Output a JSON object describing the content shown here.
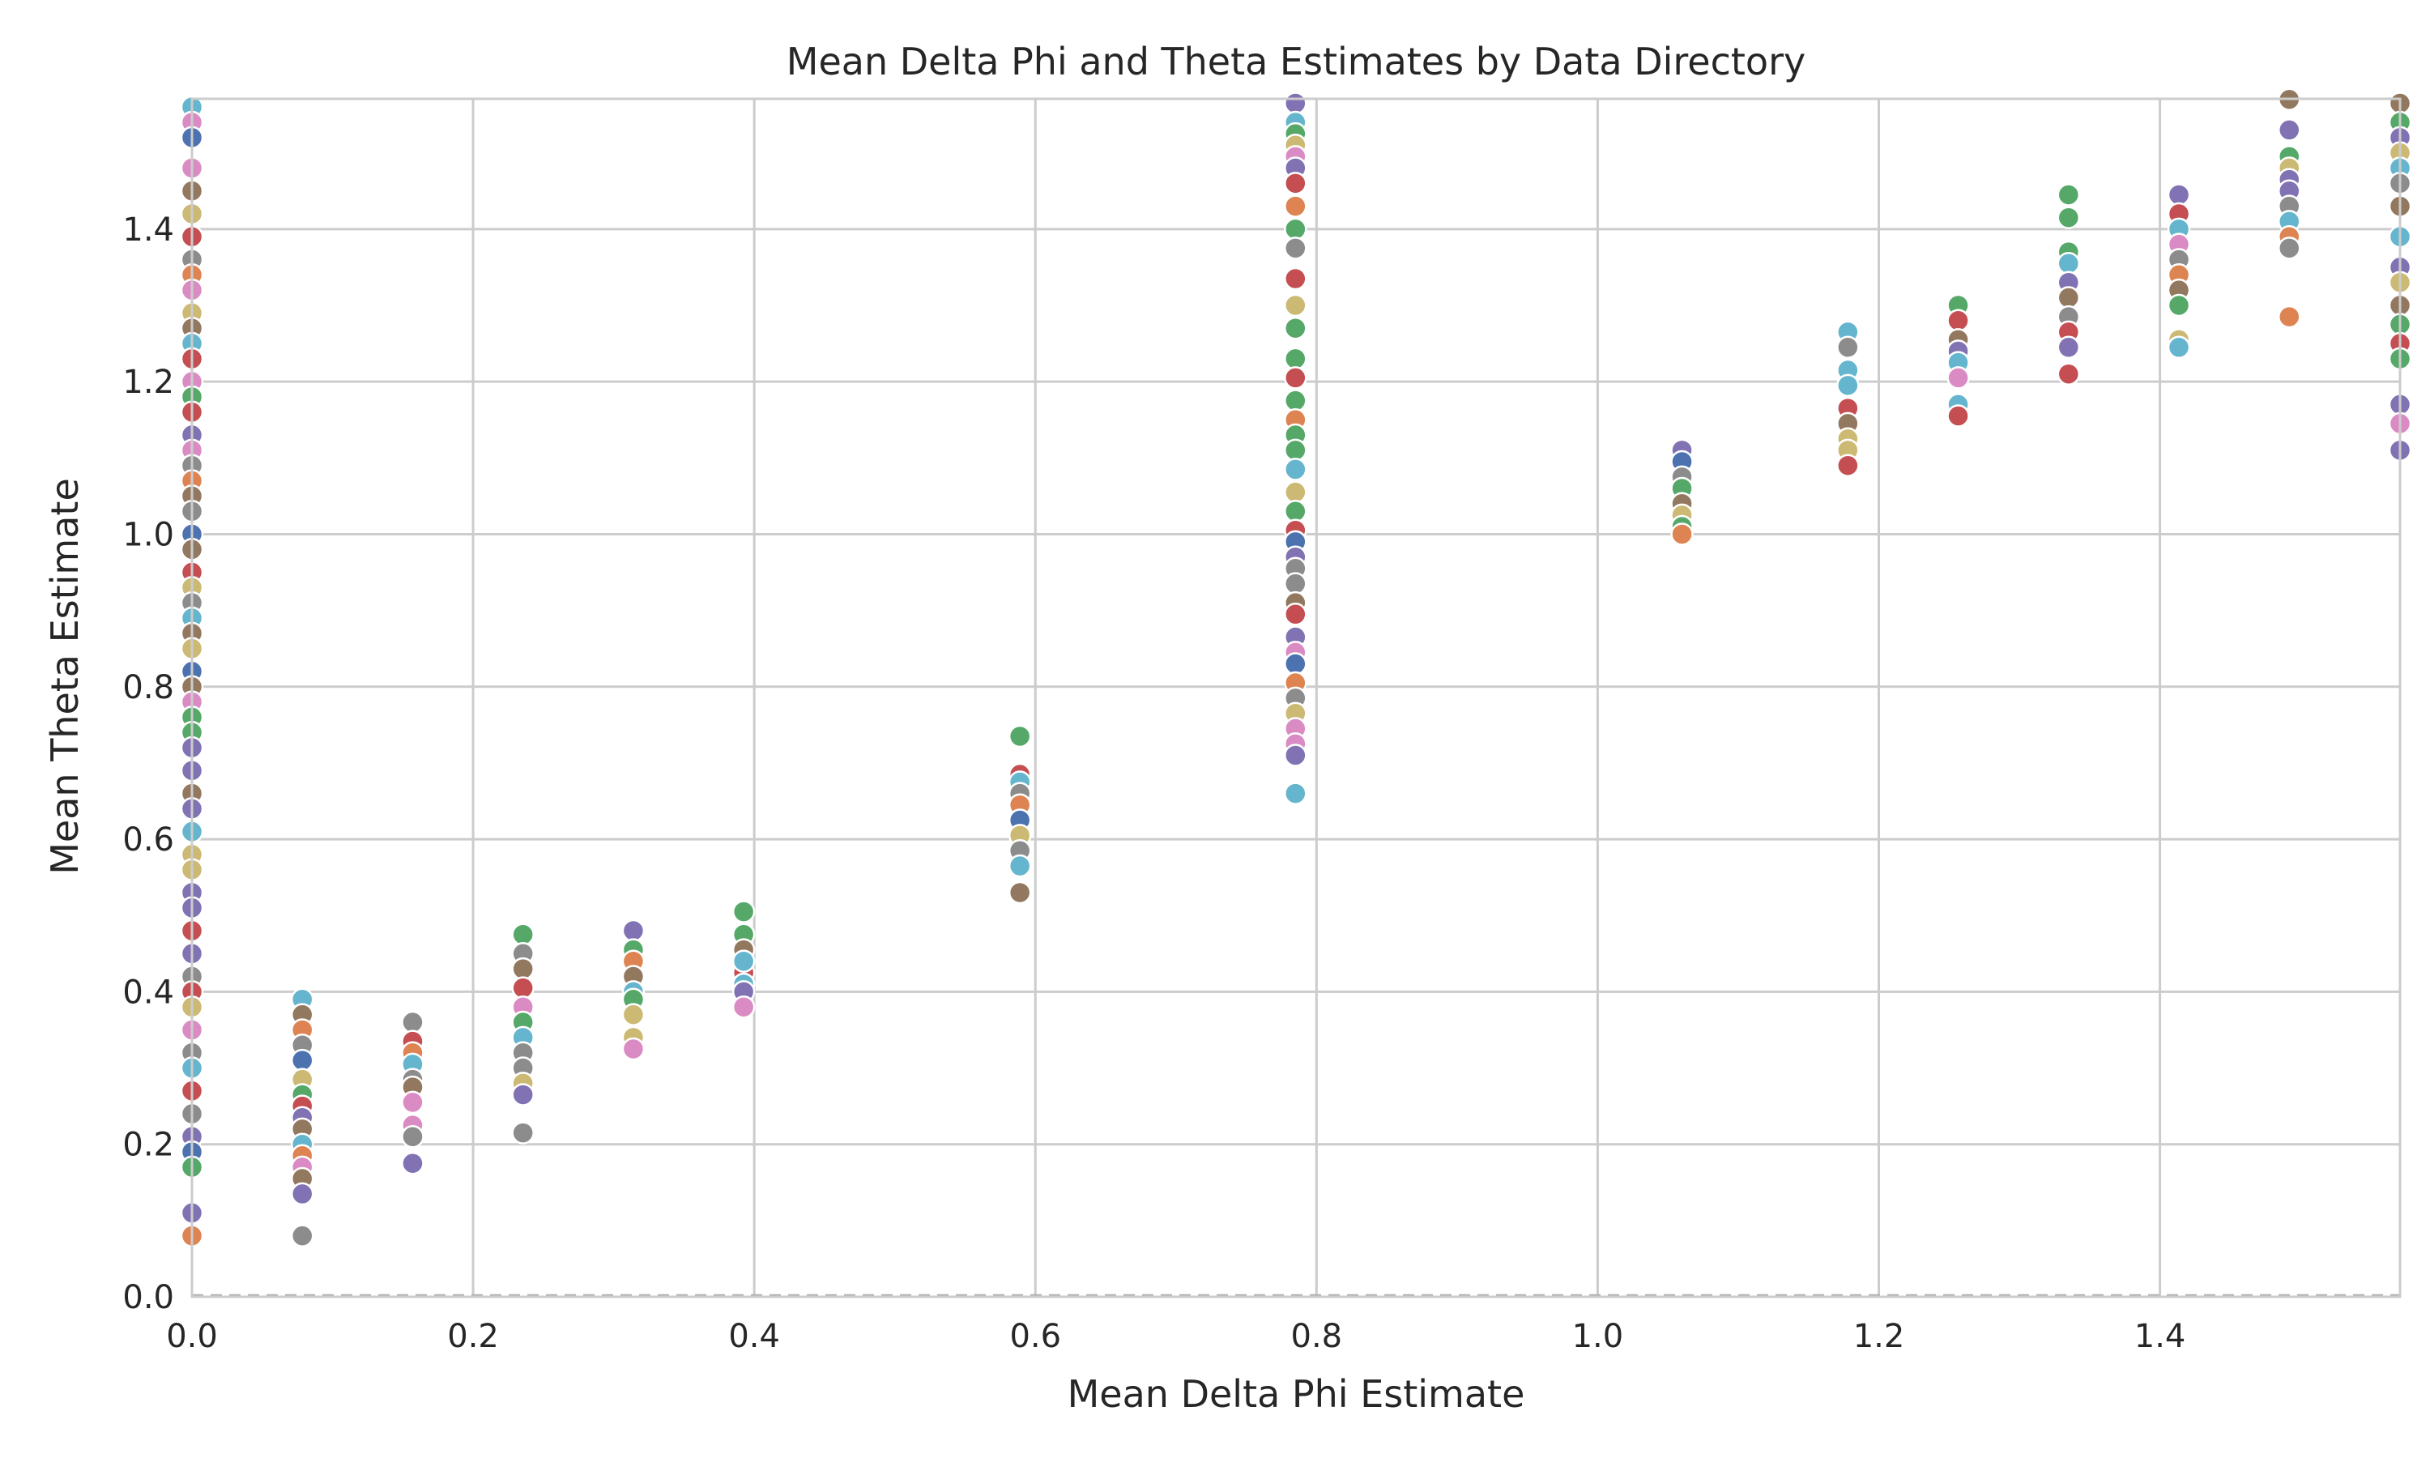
{
  "chart_data": {
    "type": "scatter",
    "title": "Mean Delta Phi and Theta Estimates by Data Directory",
    "xlabel": "Mean Delta Phi Estimate",
    "ylabel": "Mean Theta Estimate",
    "xlim": [
      0,
      1.5708
    ],
    "ylim": [
      0,
      1.5708
    ],
    "x_ticks": [
      "0.0",
      "0.2",
      "0.4",
      "0.6",
      "0.8",
      "1.0",
      "1.2",
      "1.4"
    ],
    "x_tick_values": [
      0,
      0.2,
      0.4,
      0.6,
      0.8,
      1.0,
      1.2,
      1.4
    ],
    "y_ticks": [
      "0.0",
      "0.2",
      "0.4",
      "0.6",
      "0.8",
      "1.0",
      "1.2",
      "1.4"
    ],
    "y_tick_values": [
      0,
      0.2,
      0.4,
      0.6,
      0.8,
      1.0,
      1.2,
      1.4
    ],
    "grid": true,
    "legend": "none",
    "reference_line": {
      "y": 0,
      "style": "dashed"
    },
    "palette": [
      "#4c72b0",
      "#dd8452",
      "#55a868",
      "#c44e52",
      "#8172b3",
      "#937860",
      "#da8bc3",
      "#8c8c8c",
      "#ccb974",
      "#64b5cd"
    ],
    "points": [
      {
        "x": 0,
        "y": 1.56,
        "c": 9
      },
      {
        "x": 0,
        "y": 1.54,
        "c": 6
      },
      {
        "x": 0,
        "y": 1.52,
        "c": 0
      },
      {
        "x": 0,
        "y": 1.48,
        "c": 6
      },
      {
        "x": 0,
        "y": 1.45,
        "c": 5
      },
      {
        "x": 0,
        "y": 1.42,
        "c": 8
      },
      {
        "x": 0,
        "y": 1.39,
        "c": 3
      },
      {
        "x": 0,
        "y": 1.36,
        "c": 7
      },
      {
        "x": 0,
        "y": 1.34,
        "c": 1
      },
      {
        "x": 0,
        "y": 1.32,
        "c": 6
      },
      {
        "x": 0,
        "y": 1.29,
        "c": 8
      },
      {
        "x": 0,
        "y": 1.27,
        "c": 5
      },
      {
        "x": 0,
        "y": 1.25,
        "c": 9
      },
      {
        "x": 0,
        "y": 1.23,
        "c": 3
      },
      {
        "x": 0,
        "y": 1.2,
        "c": 6
      },
      {
        "x": 0,
        "y": 1.18,
        "c": 2
      },
      {
        "x": 0,
        "y": 1.16,
        "c": 3
      },
      {
        "x": 0,
        "y": 1.13,
        "c": 4
      },
      {
        "x": 0,
        "y": 1.11,
        "c": 6
      },
      {
        "x": 0,
        "y": 1.09,
        "c": 7
      },
      {
        "x": 0,
        "y": 1.07,
        "c": 1
      },
      {
        "x": 0,
        "y": 1.05,
        "c": 5
      },
      {
        "x": 0,
        "y": 1.03,
        "c": 7
      },
      {
        "x": 0,
        "y": 1.0,
        "c": 0
      },
      {
        "x": 0,
        "y": 0.98,
        "c": 5
      },
      {
        "x": 0,
        "y": 0.95,
        "c": 3
      },
      {
        "x": 0,
        "y": 0.93,
        "c": 8
      },
      {
        "x": 0,
        "y": 0.91,
        "c": 7
      },
      {
        "x": 0,
        "y": 0.89,
        "c": 9
      },
      {
        "x": 0,
        "y": 0.87,
        "c": 5
      },
      {
        "x": 0,
        "y": 0.85,
        "c": 8
      },
      {
        "x": 0,
        "y": 0.82,
        "c": 0
      },
      {
        "x": 0,
        "y": 0.8,
        "c": 5
      },
      {
        "x": 0,
        "y": 0.78,
        "c": 6
      },
      {
        "x": 0,
        "y": 0.76,
        "c": 2
      },
      {
        "x": 0,
        "y": 0.74,
        "c": 2
      },
      {
        "x": 0,
        "y": 0.72,
        "c": 4
      },
      {
        "x": 0,
        "y": 0.69,
        "c": 4
      },
      {
        "x": 0,
        "y": 0.66,
        "c": 5
      },
      {
        "x": 0,
        "y": 0.64,
        "c": 4
      },
      {
        "x": 0,
        "y": 0.61,
        "c": 9
      },
      {
        "x": 0,
        "y": 0.58,
        "c": 8
      },
      {
        "x": 0,
        "y": 0.56,
        "c": 8
      },
      {
        "x": 0,
        "y": 0.53,
        "c": 4
      },
      {
        "x": 0,
        "y": 0.51,
        "c": 4
      },
      {
        "x": 0,
        "y": 0.48,
        "c": 3
      },
      {
        "x": 0,
        "y": 0.45,
        "c": 4
      },
      {
        "x": 0,
        "y": 0.42,
        "c": 7
      },
      {
        "x": 0,
        "y": 0.4,
        "c": 3
      },
      {
        "x": 0,
        "y": 0.38,
        "c": 8
      },
      {
        "x": 0,
        "y": 0.35,
        "c": 6
      },
      {
        "x": 0,
        "y": 0.32,
        "c": 7
      },
      {
        "x": 0,
        "y": 0.3,
        "c": 9
      },
      {
        "x": 0,
        "y": 0.27,
        "c": 3
      },
      {
        "x": 0,
        "y": 0.24,
        "c": 7
      },
      {
        "x": 0,
        "y": 0.21,
        "c": 4
      },
      {
        "x": 0,
        "y": 0.19,
        "c": 0
      },
      {
        "x": 0,
        "y": 0.17,
        "c": 2
      },
      {
        "x": 0,
        "y": 0.11,
        "c": 4
      },
      {
        "x": 0,
        "y": 0.08,
        "c": 1
      },
      {
        "x": 0.0785,
        "y": 0.39,
        "c": 9
      },
      {
        "x": 0.0785,
        "y": 0.37,
        "c": 5
      },
      {
        "x": 0.0785,
        "y": 0.35,
        "c": 1
      },
      {
        "x": 0.0785,
        "y": 0.33,
        "c": 7
      },
      {
        "x": 0.0785,
        "y": 0.31,
        "c": 0
      },
      {
        "x": 0.0785,
        "y": 0.285,
        "c": 8
      },
      {
        "x": 0.0785,
        "y": 0.265,
        "c": 2
      },
      {
        "x": 0.0785,
        "y": 0.25,
        "c": 3
      },
      {
        "x": 0.0785,
        "y": 0.235,
        "c": 4
      },
      {
        "x": 0.0785,
        "y": 0.22,
        "c": 5
      },
      {
        "x": 0.0785,
        "y": 0.2,
        "c": 9
      },
      {
        "x": 0.0785,
        "y": 0.185,
        "c": 1
      },
      {
        "x": 0.0785,
        "y": 0.17,
        "c": 6
      },
      {
        "x": 0.0785,
        "y": 0.155,
        "c": 5
      },
      {
        "x": 0.0785,
        "y": 0.135,
        "c": 4
      },
      {
        "x": 0.0785,
        "y": 0.08,
        "c": 7
      },
      {
        "x": 0.157,
        "y": 0.36,
        "c": 7
      },
      {
        "x": 0.157,
        "y": 0.335,
        "c": 3
      },
      {
        "x": 0.157,
        "y": 0.32,
        "c": 1
      },
      {
        "x": 0.157,
        "y": 0.305,
        "c": 9
      },
      {
        "x": 0.157,
        "y": 0.285,
        "c": 7
      },
      {
        "x": 0.157,
        "y": 0.275,
        "c": 5
      },
      {
        "x": 0.157,
        "y": 0.255,
        "c": 6
      },
      {
        "x": 0.157,
        "y": 0.225,
        "c": 6
      },
      {
        "x": 0.157,
        "y": 0.21,
        "c": 7
      },
      {
        "x": 0.157,
        "y": 0.175,
        "c": 4
      },
      {
        "x": 0.2355,
        "y": 0.475,
        "c": 2
      },
      {
        "x": 0.2355,
        "y": 0.45,
        "c": 7
      },
      {
        "x": 0.2355,
        "y": 0.43,
        "c": 5
      },
      {
        "x": 0.2355,
        "y": 0.405,
        "c": 3
      },
      {
        "x": 0.2355,
        "y": 0.38,
        "c": 6
      },
      {
        "x": 0.2355,
        "y": 0.36,
        "c": 2
      },
      {
        "x": 0.2355,
        "y": 0.34,
        "c": 9
      },
      {
        "x": 0.2355,
        "y": 0.32,
        "c": 7
      },
      {
        "x": 0.2355,
        "y": 0.3,
        "c": 7
      },
      {
        "x": 0.2355,
        "y": 0.28,
        "c": 8
      },
      {
        "x": 0.2355,
        "y": 0.265,
        "c": 4
      },
      {
        "x": 0.2355,
        "y": 0.215,
        "c": 7
      },
      {
        "x": 0.314,
        "y": 0.48,
        "c": 4
      },
      {
        "x": 0.314,
        "y": 0.455,
        "c": 2
      },
      {
        "x": 0.314,
        "y": 0.44,
        "c": 1
      },
      {
        "x": 0.314,
        "y": 0.42,
        "c": 5
      },
      {
        "x": 0.314,
        "y": 0.4,
        "c": 9
      },
      {
        "x": 0.314,
        "y": 0.39,
        "c": 2
      },
      {
        "x": 0.314,
        "y": 0.37,
        "c": 8
      },
      {
        "x": 0.314,
        "y": 0.34,
        "c": 8
      },
      {
        "x": 0.314,
        "y": 0.325,
        "c": 6
      },
      {
        "x": 0.3925,
        "y": 0.505,
        "c": 2
      },
      {
        "x": 0.3925,
        "y": 0.475,
        "c": 2
      },
      {
        "x": 0.3925,
        "y": 0.455,
        "c": 5
      },
      {
        "x": 0.3925,
        "y": 0.44,
        "c": 1
      },
      {
        "x": 0.3925,
        "y": 0.425,
        "c": 3
      },
      {
        "x": 0.3925,
        "y": 0.41,
        "c": 9
      },
      {
        "x": 0.3925,
        "y": 0.4,
        "c": 4
      },
      {
        "x": 0.3925,
        "y": 0.44,
        "c": 9
      },
      {
        "x": 0.3925,
        "y": 0.38,
        "c": 6
      },
      {
        "x": 0.589,
        "y": 0.735,
        "c": 2
      },
      {
        "x": 0.589,
        "y": 0.685,
        "c": 3
      },
      {
        "x": 0.589,
        "y": 0.675,
        "c": 9
      },
      {
        "x": 0.589,
        "y": 0.66,
        "c": 7
      },
      {
        "x": 0.589,
        "y": 0.645,
        "c": 1
      },
      {
        "x": 0.589,
        "y": 0.625,
        "c": 0
      },
      {
        "x": 0.589,
        "y": 0.605,
        "c": 8
      },
      {
        "x": 0.589,
        "y": 0.585,
        "c": 7
      },
      {
        "x": 0.589,
        "y": 0.565,
        "c": 9
      },
      {
        "x": 0.589,
        "y": 0.53,
        "c": 5
      },
      {
        "x": 0.785,
        "y": 1.565,
        "c": 4
      },
      {
        "x": 0.785,
        "y": 1.54,
        "c": 9
      },
      {
        "x": 0.785,
        "y": 1.525,
        "c": 2
      },
      {
        "x": 0.785,
        "y": 1.51,
        "c": 8
      },
      {
        "x": 0.785,
        "y": 1.495,
        "c": 6
      },
      {
        "x": 0.785,
        "y": 1.48,
        "c": 4
      },
      {
        "x": 0.785,
        "y": 1.46,
        "c": 3
      },
      {
        "x": 0.785,
        "y": 1.43,
        "c": 1
      },
      {
        "x": 0.785,
        "y": 1.4,
        "c": 2
      },
      {
        "x": 0.785,
        "y": 1.375,
        "c": 7
      },
      {
        "x": 0.785,
        "y": 1.335,
        "c": 3
      },
      {
        "x": 0.785,
        "y": 1.3,
        "c": 8
      },
      {
        "x": 0.785,
        "y": 1.27,
        "c": 2
      },
      {
        "x": 0.785,
        "y": 1.23,
        "c": 2
      },
      {
        "x": 0.785,
        "y": 1.205,
        "c": 3
      },
      {
        "x": 0.785,
        "y": 1.175,
        "c": 2
      },
      {
        "x": 0.785,
        "y": 1.15,
        "c": 1
      },
      {
        "x": 0.785,
        "y": 1.13,
        "c": 2
      },
      {
        "x": 0.785,
        "y": 1.11,
        "c": 2
      },
      {
        "x": 0.785,
        "y": 1.085,
        "c": 9
      },
      {
        "x": 0.785,
        "y": 1.055,
        "c": 8
      },
      {
        "x": 0.785,
        "y": 1.03,
        "c": 2
      },
      {
        "x": 0.785,
        "y": 1.005,
        "c": 3
      },
      {
        "x": 0.785,
        "y": 0.99,
        "c": 0
      },
      {
        "x": 0.785,
        "y": 0.97,
        "c": 4
      },
      {
        "x": 0.785,
        "y": 0.955,
        "c": 7
      },
      {
        "x": 0.785,
        "y": 0.935,
        "c": 7
      },
      {
        "x": 0.785,
        "y": 0.91,
        "c": 5
      },
      {
        "x": 0.785,
        "y": 0.895,
        "c": 3
      },
      {
        "x": 0.785,
        "y": 0.865,
        "c": 4
      },
      {
        "x": 0.785,
        "y": 0.845,
        "c": 6
      },
      {
        "x": 0.785,
        "y": 0.83,
        "c": 0
      },
      {
        "x": 0.785,
        "y": 0.805,
        "c": 1
      },
      {
        "x": 0.785,
        "y": 0.785,
        "c": 7
      },
      {
        "x": 0.785,
        "y": 0.765,
        "c": 8
      },
      {
        "x": 0.785,
        "y": 0.745,
        "c": 6
      },
      {
        "x": 0.785,
        "y": 0.725,
        "c": 6
      },
      {
        "x": 0.785,
        "y": 0.71,
        "c": 4
      },
      {
        "x": 0.785,
        "y": 0.66,
        "c": 9
      },
      {
        "x": 1.06,
        "y": 1.11,
        "c": 4
      },
      {
        "x": 1.06,
        "y": 1.095,
        "c": 0
      },
      {
        "x": 1.06,
        "y": 1.075,
        "c": 7
      },
      {
        "x": 1.06,
        "y": 1.06,
        "c": 2
      },
      {
        "x": 1.06,
        "y": 1.04,
        "c": 5
      },
      {
        "x": 1.06,
        "y": 1.025,
        "c": 8
      },
      {
        "x": 1.06,
        "y": 1.01,
        "c": 2
      },
      {
        "x": 1.06,
        "y": 1.0,
        "c": 1
      },
      {
        "x": 1.178,
        "y": 1.265,
        "c": 9
      },
      {
        "x": 1.178,
        "y": 1.245,
        "c": 7
      },
      {
        "x": 1.178,
        "y": 1.215,
        "c": 9
      },
      {
        "x": 1.178,
        "y": 1.195,
        "c": 9
      },
      {
        "x": 1.178,
        "y": 1.165,
        "c": 3
      },
      {
        "x": 1.178,
        "y": 1.145,
        "c": 5
      },
      {
        "x": 1.178,
        "y": 1.125,
        "c": 8
      },
      {
        "x": 1.178,
        "y": 1.11,
        "c": 8
      },
      {
        "x": 1.178,
        "y": 1.09,
        "c": 3
      },
      {
        "x": 1.2565,
        "y": 1.3,
        "c": 2
      },
      {
        "x": 1.2565,
        "y": 1.28,
        "c": 3
      },
      {
        "x": 1.2565,
        "y": 1.255,
        "c": 5
      },
      {
        "x": 1.2565,
        "y": 1.24,
        "c": 4
      },
      {
        "x": 1.2565,
        "y": 1.225,
        "c": 9
      },
      {
        "x": 1.2565,
        "y": 1.205,
        "c": 6
      },
      {
        "x": 1.2565,
        "y": 1.17,
        "c": 9
      },
      {
        "x": 1.2565,
        "y": 1.155,
        "c": 3
      },
      {
        "x": 1.335,
        "y": 1.445,
        "c": 2
      },
      {
        "x": 1.335,
        "y": 1.415,
        "c": 2
      },
      {
        "x": 1.335,
        "y": 1.37,
        "c": 2
      },
      {
        "x": 1.335,
        "y": 1.355,
        "c": 9
      },
      {
        "x": 1.335,
        "y": 1.33,
        "c": 4
      },
      {
        "x": 1.335,
        "y": 1.31,
        "c": 5
      },
      {
        "x": 1.335,
        "y": 1.285,
        "c": 7
      },
      {
        "x": 1.335,
        "y": 1.265,
        "c": 3
      },
      {
        "x": 1.335,
        "y": 1.245,
        "c": 4
      },
      {
        "x": 1.335,
        "y": 1.21,
        "c": 3
      },
      {
        "x": 1.4135,
        "y": 1.445,
        "c": 4
      },
      {
        "x": 1.4135,
        "y": 1.42,
        "c": 3
      },
      {
        "x": 1.4135,
        "y": 1.4,
        "c": 9
      },
      {
        "x": 1.4135,
        "y": 1.38,
        "c": 6
      },
      {
        "x": 1.4135,
        "y": 1.36,
        "c": 7
      },
      {
        "x": 1.4135,
        "y": 1.34,
        "c": 1
      },
      {
        "x": 1.4135,
        "y": 1.32,
        "c": 5
      },
      {
        "x": 1.4135,
        "y": 1.3,
        "c": 2
      },
      {
        "x": 1.4135,
        "y": 1.255,
        "c": 8
      },
      {
        "x": 1.4135,
        "y": 1.245,
        "c": 9
      },
      {
        "x": 1.492,
        "y": 1.57,
        "c": 5
      },
      {
        "x": 1.492,
        "y": 1.53,
        "c": 4
      },
      {
        "x": 1.492,
        "y": 1.495,
        "c": 2
      },
      {
        "x": 1.492,
        "y": 1.48,
        "c": 8
      },
      {
        "x": 1.492,
        "y": 1.465,
        "c": 4
      },
      {
        "x": 1.492,
        "y": 1.45,
        "c": 4
      },
      {
        "x": 1.492,
        "y": 1.43,
        "c": 7
      },
      {
        "x": 1.492,
        "y": 1.41,
        "c": 9
      },
      {
        "x": 1.492,
        "y": 1.39,
        "c": 1
      },
      {
        "x": 1.492,
        "y": 1.375,
        "c": 7
      },
      {
        "x": 1.492,
        "y": 1.285,
        "c": 1
      },
      {
        "x": 1.5708,
        "y": 1.565,
        "c": 5
      },
      {
        "x": 1.5708,
        "y": 1.54,
        "c": 2
      },
      {
        "x": 1.5708,
        "y": 1.52,
        "c": 4
      },
      {
        "x": 1.5708,
        "y": 1.5,
        "c": 8
      },
      {
        "x": 1.5708,
        "y": 1.48,
        "c": 9
      },
      {
        "x": 1.5708,
        "y": 1.46,
        "c": 7
      },
      {
        "x": 1.5708,
        "y": 1.43,
        "c": 5
      },
      {
        "x": 1.5708,
        "y": 1.39,
        "c": 9
      },
      {
        "x": 1.5708,
        "y": 1.35,
        "c": 4
      },
      {
        "x": 1.5708,
        "y": 1.33,
        "c": 8
      },
      {
        "x": 1.5708,
        "y": 1.3,
        "c": 5
      },
      {
        "x": 1.5708,
        "y": 1.275,
        "c": 2
      },
      {
        "x": 1.5708,
        "y": 1.25,
        "c": 3
      },
      {
        "x": 1.5708,
        "y": 1.23,
        "c": 2
      },
      {
        "x": 1.5708,
        "y": 1.17,
        "c": 4
      },
      {
        "x": 1.5708,
        "y": 1.145,
        "c": 6
      },
      {
        "x": 1.5708,
        "y": 1.11,
        "c": 4
      }
    ]
  }
}
